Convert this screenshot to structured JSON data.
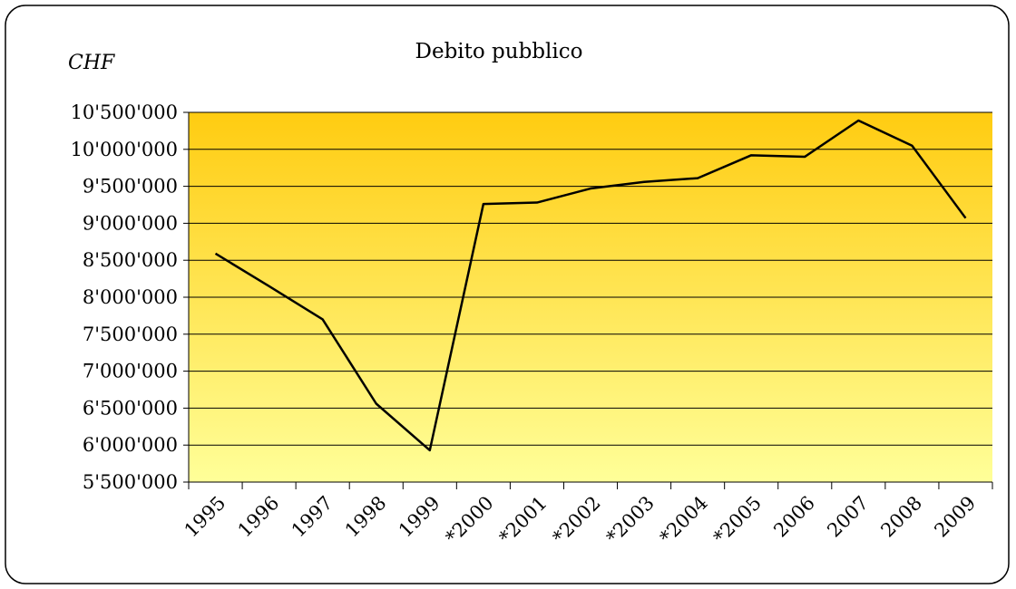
{
  "chart_data": {
    "type": "line",
    "title": "Debito pubblico",
    "y_label": "CHF",
    "categories": [
      "1995",
      "1996",
      "1997",
      "1998",
      "1999",
      "*2000",
      "*2001",
      "*2002",
      "*2003",
      "*2004",
      "*2005",
      "2006",
      "2007",
      "2008",
      "2009"
    ],
    "series": [
      {
        "name": "Debito pubblico",
        "color": "#000000",
        "values": [
          8590000,
          8150000,
          7700000,
          6560000,
          5930000,
          9260000,
          9280000,
          9470000,
          9560000,
          9610000,
          9920000,
          9900000,
          10390000,
          10050000,
          9070000
        ]
      }
    ],
    "ylim": [
      5500000,
      10500000
    ],
    "yticks": [
      {
        "value": 5500000,
        "label": "5'500'000"
      },
      {
        "value": 6000000,
        "label": "6'000'000"
      },
      {
        "value": 6500000,
        "label": "6'500'000"
      },
      {
        "value": 7000000,
        "label": "7'000'000"
      },
      {
        "value": 7500000,
        "label": "7'500'000"
      },
      {
        "value": 8000000,
        "label": "8'000'000"
      },
      {
        "value": 8500000,
        "label": "8'500'000"
      },
      {
        "value": 9000000,
        "label": "9'000'000"
      },
      {
        "value": 9500000,
        "label": "9'500'000"
      },
      {
        "value": 10000000,
        "label": "10'000'000"
      },
      {
        "value": 10500000,
        "label": "10'500'000"
      }
    ],
    "grid": true
  }
}
